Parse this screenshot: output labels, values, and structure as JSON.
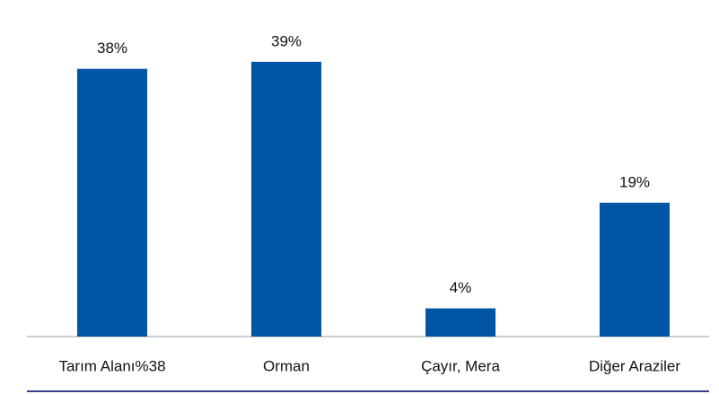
{
  "chart_data": {
    "type": "bar",
    "categories": [
      "Tarım Alanı%38",
      "Orman",
      "Çayır, Mera",
      "Diğer Araziler"
    ],
    "values": [
      38,
      39,
      4,
      19
    ],
    "value_labels": [
      "38%",
      "39%",
      "4%",
      "19%"
    ],
    "color": "#0055a5"
  }
}
